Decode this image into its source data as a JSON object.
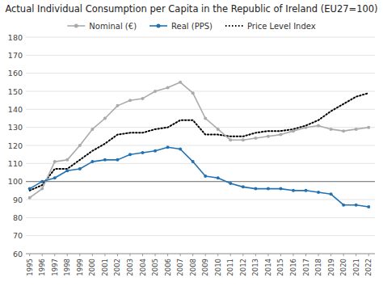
{
  "chart_data": {
    "type": "line",
    "title": "Actual Individual Consumption per Capita in the Republic of Ireland (EU27=100)",
    "x": [
      1995,
      1996,
      1997,
      1998,
      1999,
      2000,
      2001,
      2002,
      2003,
      2004,
      2005,
      2006,
      2007,
      2008,
      2009,
      2010,
      2011,
      2012,
      2013,
      2014,
      2015,
      2016,
      2017,
      2018,
      2019,
      2020,
      2021,
      2022
    ],
    "series": [
      {
        "name": "Nominal (€)",
        "color": "#aaaaaa",
        "marker": "circle",
        "line_style": "solid",
        "values": [
          91,
          96,
          111,
          112,
          120,
          129,
          135,
          142,
          145,
          146,
          150,
          152,
          155,
          149,
          135,
          129,
          123,
          123,
          124,
          125,
          126,
          128,
          130,
          131,
          129,
          128,
          129,
          130
        ]
      },
      {
        "name": "Real (PPS)",
        "color": "#2271b3",
        "marker": "circle",
        "line_style": "solid",
        "values": [
          96,
          100,
          102,
          106,
          107,
          111,
          112,
          112,
          115,
          116,
          117,
          119,
          118,
          111,
          103,
          102,
          99,
          97,
          96,
          96,
          96,
          95,
          95,
          94,
          93,
          87,
          87,
          86
        ]
      },
      {
        "name": "Price Level Index",
        "color": "#000000",
        "marker": "none",
        "line_style": "dotted",
        "values": [
          95,
          98,
          107,
          107,
          112,
          117,
          121,
          126,
          127,
          127,
          129,
          130,
          134,
          134,
          126,
          126,
          125,
          125,
          127,
          128,
          128,
          129,
          131,
          134,
          139,
          143,
          147,
          149
        ]
      }
    ],
    "reference_line": 100,
    "xlim": [
      1994.7,
      2022.5
    ],
    "xticks": [
      1995,
      1996,
      1997,
      1998,
      1999,
      2000,
      2001,
      2002,
      2003,
      2004,
      2005,
      2006,
      2007,
      2008,
      2009,
      2010,
      2011,
      2012,
      2013,
      2014,
      2015,
      2016,
      2017,
      2018,
      2019,
      2020,
      2021,
      2022
    ],
    "ylim": [
      60,
      180
    ],
    "yticks": [
      60,
      70,
      80,
      90,
      100,
      110,
      120,
      130,
      140,
      150,
      160,
      170,
      180
    ],
    "grid": "y",
    "legend": "top"
  }
}
